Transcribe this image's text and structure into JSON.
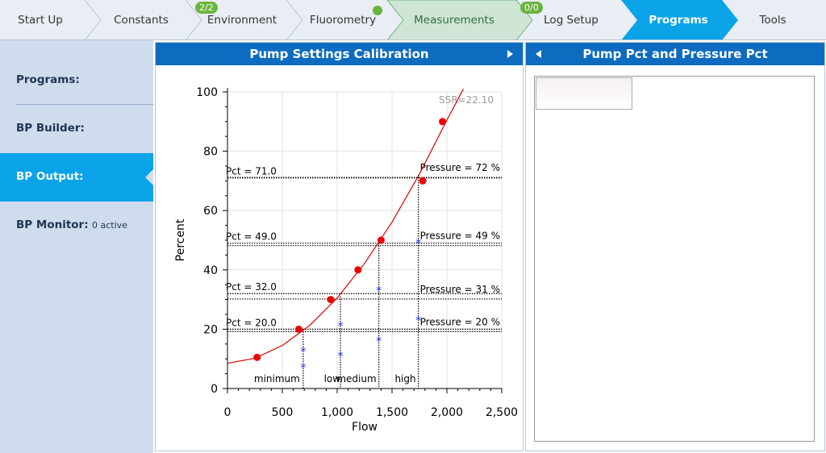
{
  "nav": {
    "tabs": [
      {
        "label": "Start Up"
      },
      {
        "label": "Constants"
      },
      {
        "label": "Environment",
        "badge": "2/2"
      },
      {
        "label": "Fluorometry"
      },
      {
        "label": "Measurements"
      },
      {
        "label": "Log Setup",
        "badge": "0/0"
      },
      {
        "label": "Programs"
      },
      {
        "label": "Tools"
      }
    ]
  },
  "sidebar": {
    "items": [
      {
        "label": "Programs:"
      },
      {
        "label": "BP Builder:"
      },
      {
        "label": "BP Output:"
      },
      {
        "label": "BP Monitor:",
        "note": "0 active"
      }
    ]
  },
  "left_panel": {
    "title": "Pump Settings Calibration"
  },
  "right_panel": {
    "title": "Pump Pct and Pressure Pct"
  },
  "colors": {
    "accent": "#0aa3e8",
    "header": "#0d6cbf",
    "sidebar": "#cfdcee",
    "measurements_bg": "#cfe6d6",
    "badge": "#6cb33f",
    "fit_curve": "#dd0000",
    "star_points": "#2233dd"
  },
  "chart_data": {
    "type": "scatter",
    "xlabel": "Flow",
    "ylabel": "Percent",
    "xlim": [
      0,
      2500
    ],
    "ylim": [
      0,
      100
    ],
    "xticks": [
      "0",
      "500",
      "1,000",
      "1,500",
      "2,000",
      "2,500"
    ],
    "yticks": [
      "0",
      "20",
      "40",
      "60",
      "80",
      "100"
    ],
    "grid": true,
    "annotation": "SSR=22.10",
    "series": [
      {
        "marker": "circle",
        "color": "#ee0000",
        "x": [
          270,
          650,
          940,
          1190,
          1400,
          1780,
          1960
        ],
        "y": [
          10.5,
          20,
          30,
          40,
          50,
          70,
          90
        ]
      },
      {
        "marker": "star",
        "color": "#2233dd",
        "x": [
          690,
          690,
          1030,
          1030,
          1380,
          1380,
          1740,
          1740
        ],
        "y": [
          7,
          12.5,
          11,
          21,
          16,
          33,
          23,
          49
        ]
      },
      {
        "marker": "line",
        "color": "#dd0000",
        "x": [
          0,
          250,
          500,
          750,
          1000,
          1250,
          1500,
          1750,
          2000,
          2150
        ],
        "y": [
          8.5,
          10.2,
          14.5,
          21.3,
          30.5,
          42.2,
          56.1,
          72.3,
          90.5,
          101
        ]
      }
    ],
    "pct_lines": [
      {
        "label": "Pct = 71.0",
        "y": 71.0
      },
      {
        "label": "Pct = 49.0",
        "y": 49.0
      },
      {
        "label": "Pct = 32.0",
        "y": 32.0
      },
      {
        "label": "Pct = 20.0",
        "y": 20.0
      }
    ],
    "pressure_lines": [
      {
        "label": "Pressure = 72 %",
        "y": 72
      },
      {
        "label": "Pressure = 49 %",
        "y": 49
      },
      {
        "label": "Pressure = 31 %",
        "y": 31
      },
      {
        "label": "Pressure = 20 %",
        "y": 20
      }
    ],
    "zone_lines": [
      {
        "x": 690,
        "y": 20
      },
      {
        "x": 1030,
        "y": 31
      },
      {
        "x": 1380,
        "y": 49
      },
      {
        "x": 1740,
        "y": 72
      }
    ],
    "zone_labels": [
      "minimum",
      "low",
      "medium",
      "high"
    ]
  }
}
